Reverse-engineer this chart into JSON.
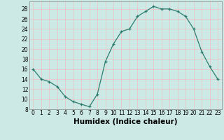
{
  "x": [
    0,
    1,
    2,
    3,
    4,
    5,
    6,
    7,
    8,
    9,
    10,
    11,
    12,
    13,
    14,
    15,
    16,
    17,
    18,
    19,
    20,
    21,
    22,
    23
  ],
  "y": [
    16,
    14,
    13.5,
    12.5,
    10.5,
    9.5,
    9,
    8.5,
    11,
    17.5,
    21,
    23.5,
    24,
    26.5,
    27.5,
    28.5,
    28,
    28,
    27.5,
    26.5,
    24,
    19.5,
    16.5,
    14
  ],
  "xlabel": "Humidex (Indice chaleur)",
  "line_color": "#2d7d6e",
  "marker": "+",
  "bg_color": "#cce9e5",
  "grid_color": "#e8c8c8",
  "ylim": [
    8,
    29.5
  ],
  "xlim": [
    -0.5,
    23.5
  ],
  "yticks": [
    8,
    10,
    12,
    14,
    16,
    18,
    20,
    22,
    24,
    26,
    28
  ],
  "xticks": [
    0,
    1,
    2,
    3,
    4,
    5,
    6,
    7,
    8,
    9,
    10,
    11,
    12,
    13,
    14,
    15,
    16,
    17,
    18,
    19,
    20,
    21,
    22,
    23
  ],
  "tick_fontsize": 5.5,
  "xlabel_fontsize": 7.5
}
